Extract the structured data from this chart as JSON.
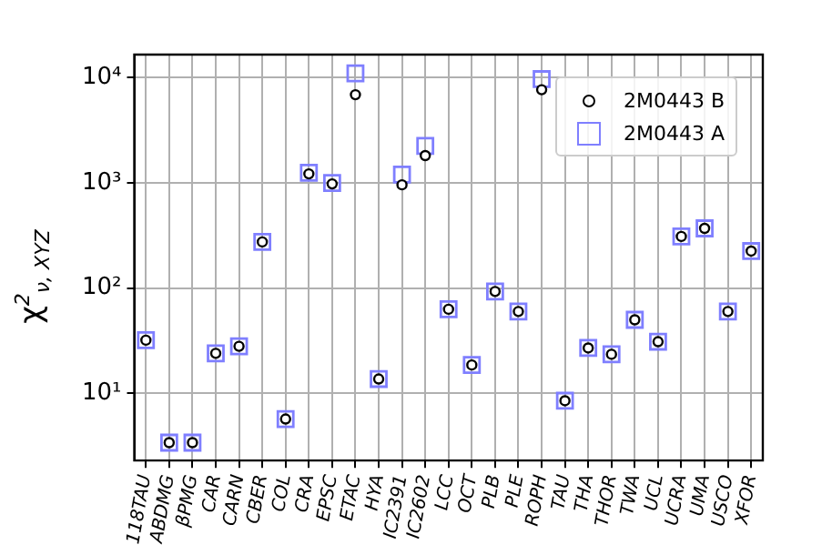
{
  "chart_data": {
    "type": "scatter",
    "ylabel": "χ$^{2}$$_{ν, XYZ}$",
    "categories": [
      "118TAU",
      "ABDMG",
      "βPMG",
      "CAR",
      "CARN",
      "CBER",
      "COL",
      "CRA",
      "EPSC",
      "ETAC",
      "HYA",
      "IC2391",
      "IC2602",
      "LCC",
      "OCT",
      "PLB",
      "PLE",
      "ROPH",
      "TAU",
      "THA",
      "THOR",
      "TWA",
      "UCL",
      "UCRA",
      "UMA",
      "USCO",
      "XFOR"
    ],
    "series": [
      {
        "name": "2M0443 B",
        "color": "#000000",
        "marker": "circle",
        "values": [
          32,
          3.4,
          3.4,
          24,
          28,
          275,
          5.7,
          1220,
          980,
          6900,
          13.7,
          960,
          1820,
          63,
          18.6,
          93,
          60,
          7700,
          8.5,
          27,
          23.5,
          50,
          31,
          310,
          370,
          60,
          225
        ]
      },
      {
        "name": "2M0443 A",
        "color": "#7f7fff",
        "marker": "square",
        "values": [
          32,
          3.4,
          3.4,
          24,
          28,
          275,
          5.7,
          1250,
          1000,
          11000,
          13.7,
          1200,
          2250,
          63,
          18.6,
          93,
          60,
          9700,
          8.5,
          27,
          23.5,
          50,
          31,
          310,
          370,
          60,
          225
        ]
      }
    ],
    "log": true,
    "ylim": [
      2.3,
      16600
    ],
    "yticks": [
      {
        "value": 10,
        "label": "10¹"
      },
      {
        "value": 100,
        "label": "10²"
      },
      {
        "value": 1000,
        "label": "10³"
      },
      {
        "value": 10000,
        "label": "10⁴"
      }
    ],
    "grid": true,
    "legend": "top right"
  }
}
